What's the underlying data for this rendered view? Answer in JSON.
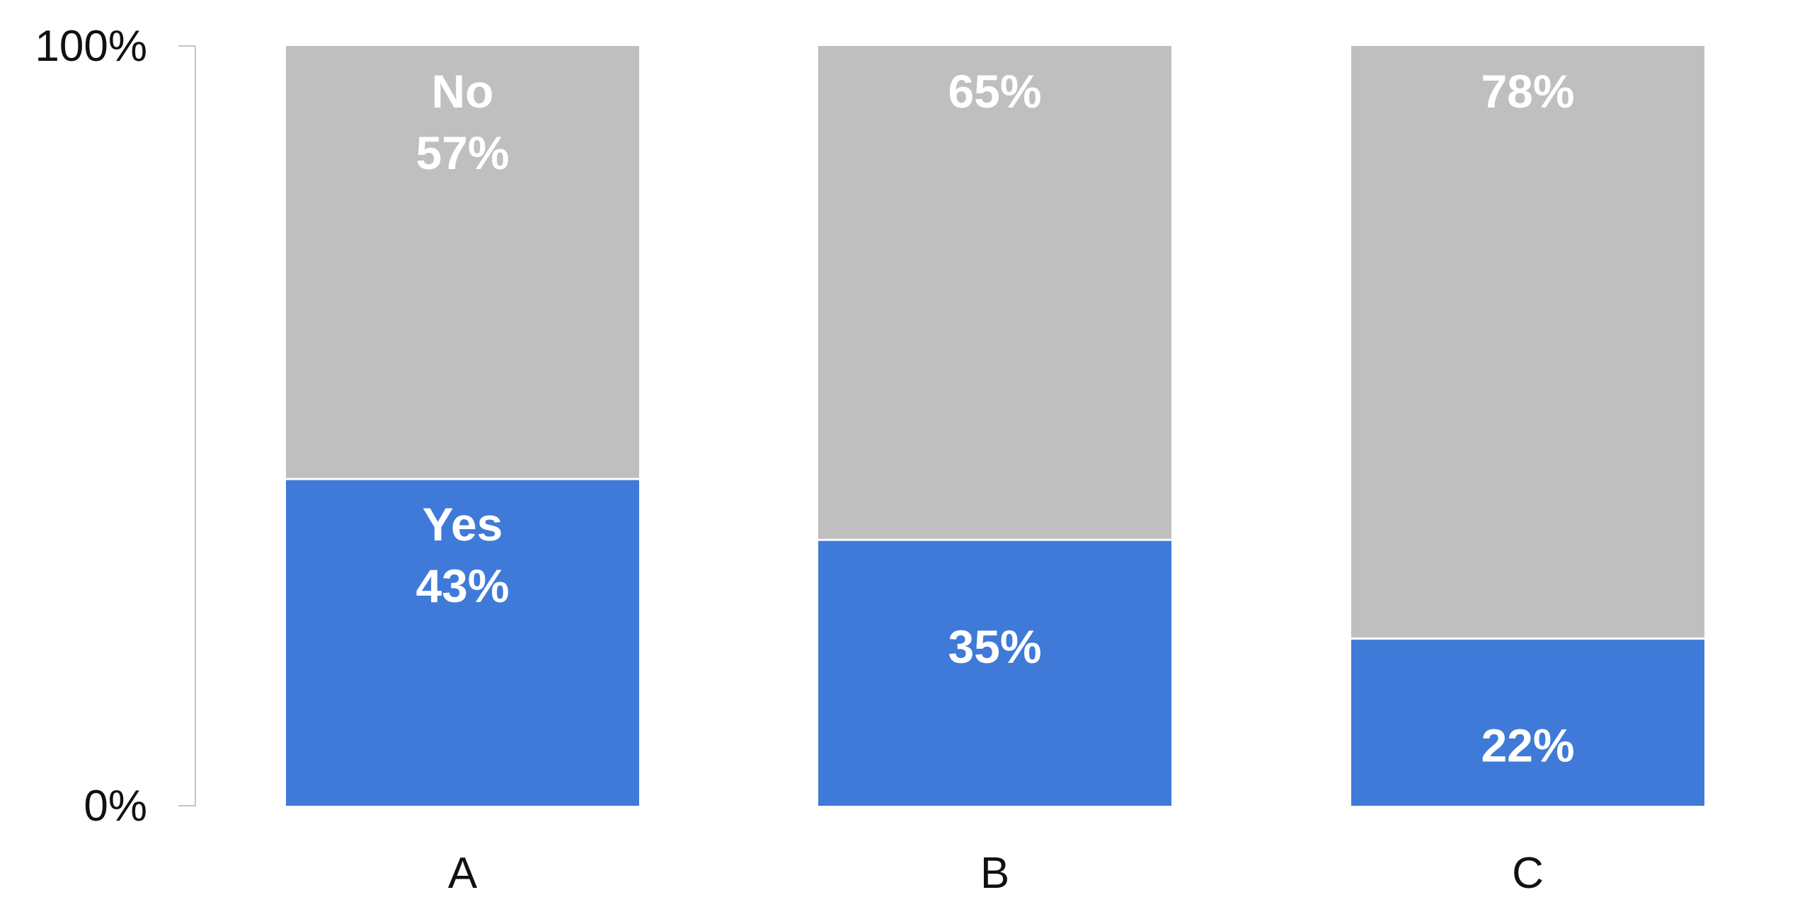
{
  "chart_data": {
    "type": "bar",
    "stacked": true,
    "normalized": true,
    "categories": [
      "A",
      "B",
      "C"
    ],
    "series": [
      {
        "name": "Yes",
        "values": [
          43,
          35,
          22
        ],
        "color": "#3f7ad8"
      },
      {
        "name": "No",
        "values": [
          57,
          65,
          78
        ],
        "color": "#bfbfbf"
      }
    ],
    "ylim": [
      0,
      100
    ],
    "y_ticks": [
      "0%",
      "100%"
    ],
    "value_labels": {
      "Yes": [
        "43%",
        "35%",
        "22%"
      ],
      "No": [
        "57%",
        "65%",
        "78%"
      ]
    },
    "series_name_shown_on": "A",
    "legend": "none",
    "grid": false,
    "title": "",
    "xlabel": "",
    "ylabel": ""
  }
}
